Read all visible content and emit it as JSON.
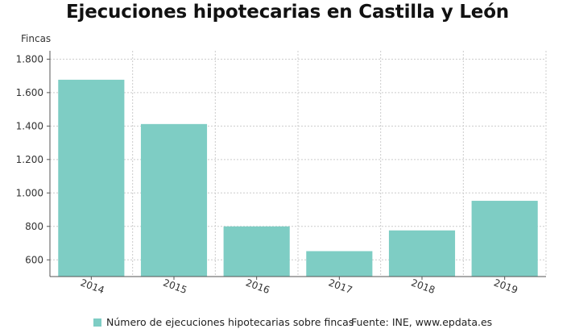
{
  "chart_data": {
    "type": "bar",
    "title": "Ejecuciones hipotecarias en Castilla y León",
    "ylabel": "Fincas",
    "xlabel": "",
    "categories": [
      "2014",
      "2015",
      "2016",
      "2017",
      "2018",
      "2019"
    ],
    "series": [
      {
        "name": "Número de ejecuciones hipotecarias sobre fincas",
        "values": [
          1677,
          1412,
          800,
          652,
          776,
          953
        ]
      }
    ],
    "ylim": [
      500,
      1850
    ],
    "yticks": [
      600,
      800,
      1000,
      1200,
      1400,
      1600,
      1800
    ],
    "ytick_labels": [
      "600",
      "800",
      "1.000",
      "1.200",
      "1.400",
      "1.600",
      "1.800"
    ],
    "grid": true,
    "legend_position": "bottom",
    "bar_color": "#7ecdc4",
    "source": "Fuente: INE, www.epdata.es"
  }
}
